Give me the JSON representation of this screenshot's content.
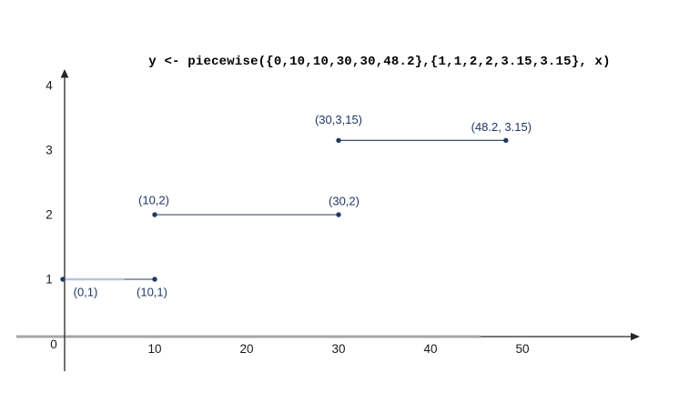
{
  "title": "y <- piecewise({0,10,10,30,30,48.2},{1,1,2,2,3.15,3.15}, x)",
  "chart_data": {
    "type": "line",
    "subtype": "piecewise-constant-segments",
    "title": "y <- piecewise({0,10,10,30,30,48.2},{1,1,2,2,3.15,3.15}, x)",
    "xlabel": "",
    "ylabel": "",
    "x_breakpoints": [
      0,
      10,
      10,
      30,
      30,
      48.2
    ],
    "y_values": [
      1,
      1,
      2,
      2,
      3.15,
      3.15
    ],
    "x_ticks": [
      10,
      20,
      30,
      40,
      50
    ],
    "y_ticks": [
      1,
      2,
      3,
      4
    ],
    "origin_label": "0",
    "xlim": [
      -5,
      63
    ],
    "ylim": [
      -1.5,
      4.4
    ],
    "grid": false,
    "legend": false,
    "segments": [
      {
        "x1": 0,
        "y1": 1,
        "x2": 10,
        "y2": 1,
        "highlight_to_x": 6.7,
        "point_labels": [
          {
            "text": "(0,1)",
            "x": 0,
            "y": 1,
            "dx": 25,
            "dy": 14
          },
          {
            "text": "(10,1)",
            "x": 10,
            "y": 1,
            "dx": -3,
            "dy": 14
          }
        ]
      },
      {
        "x1": 10,
        "y1": 2,
        "x2": 30,
        "y2": 2,
        "point_labels": [
          {
            "text": "(10,2)",
            "x": 10,
            "y": 2,
            "dx": -1,
            "dy": -16
          },
          {
            "text": "(30,2)",
            "x": 30,
            "y": 2,
            "dx": 6,
            "dy": -15
          }
        ]
      },
      {
        "x1": 30,
        "y1": 3.15,
        "x2": 48.2,
        "y2": 3.15,
        "point_labels": [
          {
            "text": "(30,3,15)",
            "x": 30,
            "y": 3.15,
            "dx": 0,
            "dy": -23
          },
          {
            "text": "(48.2, 3.15)",
            "x": 48.2,
            "y": 3.15,
            "dx": -5,
            "dy": -15
          }
        ]
      }
    ],
    "colors": {
      "series": "#1f3864",
      "point": "#1f3864",
      "point_label": "#1f3864",
      "axis_line": "#262626",
      "axis_gray_overlay": "#a6a6a6",
      "segment_highlight": "#b7c6d9",
      "tick_label": "#1a1a1a",
      "title": "#000000",
      "background": "#ffffff"
    }
  }
}
